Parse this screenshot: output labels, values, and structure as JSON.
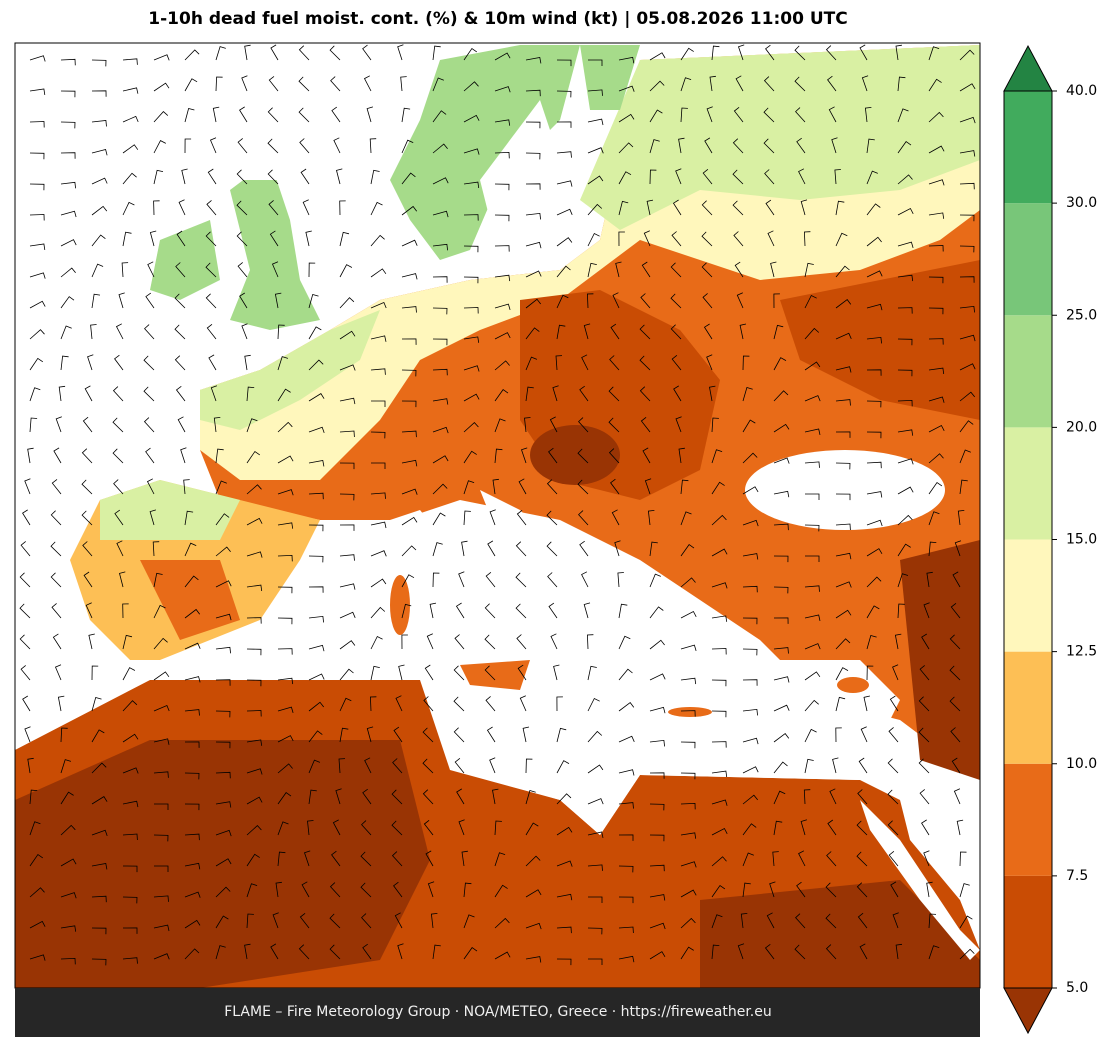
{
  "title": "1-10h dead fuel moist. cont. (%) & 10m wind (kt)  |  05.08.2026 11:00 UTC",
  "footer": "FLAME – Fire Meteorology Group · NOA/METEO, Greece · https://fireweather.eu",
  "colorbar": {
    "ticks": [
      {
        "value": 5,
        "label": "5.0"
      },
      {
        "value": 7.5,
        "label": "7.5"
      },
      {
        "value": 10,
        "label": "10.0"
      },
      {
        "value": 12.5,
        "label": "12.5"
      },
      {
        "value": 15,
        "label": "15.0"
      },
      {
        "value": 20,
        "label": "20.0"
      },
      {
        "value": 25,
        "label": "25.0"
      },
      {
        "value": 30,
        "label": "30.0"
      },
      {
        "value": 40,
        "label": "40.0"
      }
    ],
    "colors": [
      "#c94c04",
      "#e86b18",
      "#fdbf55",
      "#fff7bc",
      "#d9f0a3",
      "#a6db8a",
      "#78c679",
      "#41ab5d"
    ],
    "under_color": "#993404",
    "over_color": "#238443"
  }
}
